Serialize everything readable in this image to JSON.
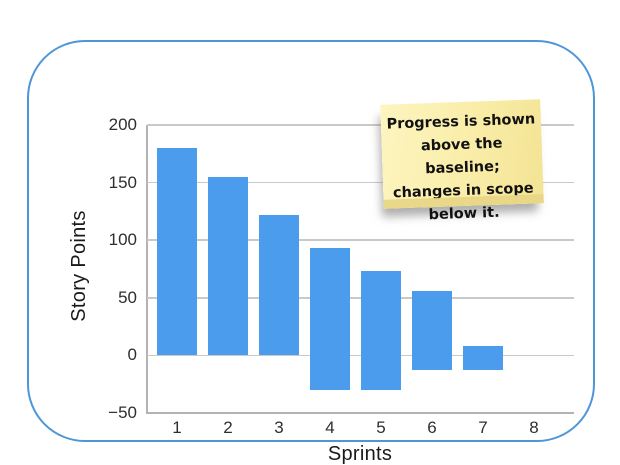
{
  "card": {
    "border_color": "#4f96d8"
  },
  "chart_data": {
    "type": "bar",
    "title": "",
    "xlabel": "Sprints",
    "ylabel": "Story Points",
    "categories": [
      "1",
      "2",
      "3",
      "4",
      "5",
      "6",
      "7",
      "8"
    ],
    "y_ticks": [
      200,
      150,
      100,
      50,
      0,
      -50
    ],
    "y_tick_labels": [
      "200",
      "150",
      "100",
      "50",
      "0",
      "−50"
    ],
    "ylim": [
      -50,
      200
    ],
    "grid": true,
    "legend_position": "none",
    "bar_color": "#4b9cec",
    "gridline_color": "#c9c9c9",
    "axis_color": "#b3b3b3",
    "bars": [
      {
        "sprint": "1",
        "progress_top": 180,
        "scope_bottom": 0
      },
      {
        "sprint": "2",
        "progress_top": 155,
        "scope_bottom": 0
      },
      {
        "sprint": "3",
        "progress_top": 122,
        "scope_bottom": 0
      },
      {
        "sprint": "4",
        "progress_top": 93,
        "scope_bottom": -30
      },
      {
        "sprint": "5",
        "progress_top": 73,
        "scope_bottom": -30
      },
      {
        "sprint": "6",
        "progress_top": 56,
        "scope_bottom": -13
      },
      {
        "sprint": "7",
        "progress_top": 8,
        "scope_bottom": -13
      },
      {
        "sprint": "8",
        "progress_top": null,
        "scope_bottom": null
      }
    ]
  },
  "note": {
    "lines": [
      "Progress is shown",
      "above the baseline;",
      "changes in scope",
      "below it."
    ],
    "bg_color": "#f8eca4",
    "fold_color": "#e7d584",
    "text_color": "#111111"
  }
}
